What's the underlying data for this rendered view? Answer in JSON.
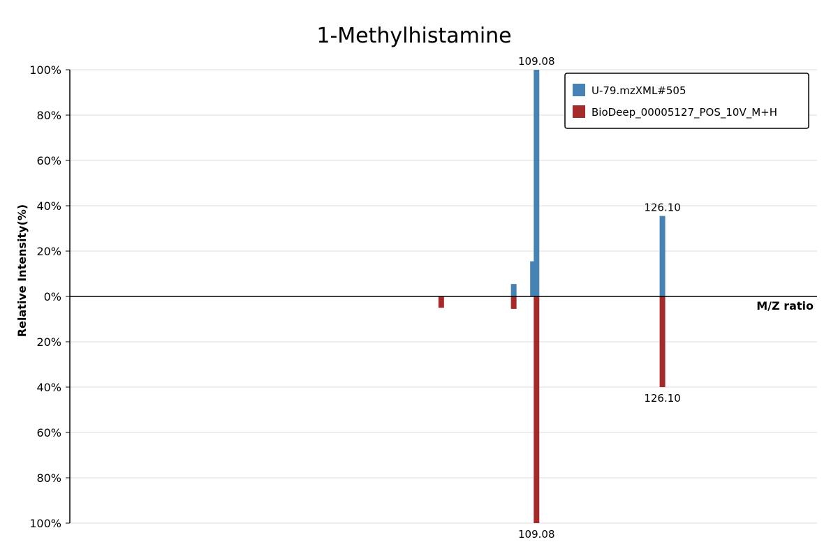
{
  "chart_data": {
    "type": "bar",
    "title": "1-Methylhistamine",
    "xlabel": "M/Z ratio",
    "ylabel": "Relative Intensity(%)",
    "y_ticks_top": [
      "100%",
      "80%",
      "60%",
      "40%",
      "20%",
      "0%"
    ],
    "y_ticks_bottom": [
      "20%",
      "40%",
      "60%",
      "80%",
      "100%"
    ],
    "ylim": [
      -100,
      100
    ],
    "xlim": [
      46,
      147
    ],
    "grid": true,
    "legend_position": "top-right",
    "series": [
      {
        "name": "U-79.mzXML#505",
        "color": "#4682B4",
        "direction": "up",
        "peaks": [
          {
            "mz": 106.0,
            "intensity": 5.5
          },
          {
            "mz": 108.6,
            "intensity": 15.5
          },
          {
            "mz": 109.08,
            "intensity": 100,
            "label": "109.08"
          },
          {
            "mz": 126.1,
            "intensity": 35.5,
            "label": "126.10"
          }
        ]
      },
      {
        "name": "BioDeep_00005127_POS_10V_M+H",
        "color": "#A52A2A",
        "direction": "down",
        "peaks": [
          {
            "mz": 96.2,
            "intensity": 5.0
          },
          {
            "mz": 106.0,
            "intensity": 5.5
          },
          {
            "mz": 109.08,
            "intensity": 100,
            "label": "109.08"
          },
          {
            "mz": 126.1,
            "intensity": 40,
            "label": "126.10"
          }
        ]
      }
    ]
  }
}
